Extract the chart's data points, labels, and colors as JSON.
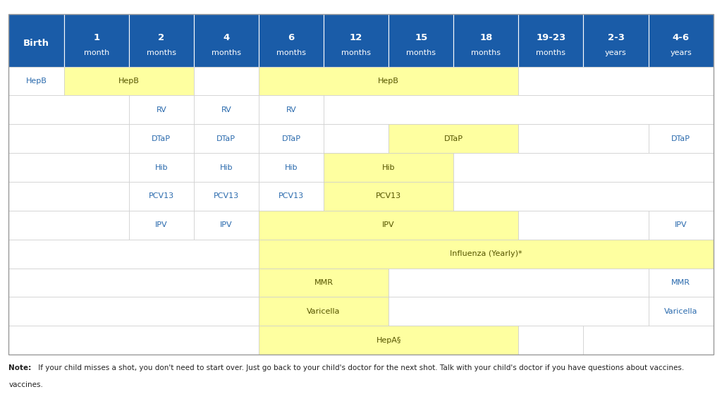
{
  "header_bg": "#1a5ca8",
  "header_text": "#ffffff",
  "yellow_bg": "#feffa0",
  "white_bg": "#ffffff",
  "border_color": "#cccccc",
  "text_color_blue": "#2a6aad",
  "text_color_dark": "#555500",
  "note_bold": "Note:",
  "note_rest": " If your child misses a shot, you don't need to start over. Just go back to your child's doctor for the next shot. Talk with your child's doctor if you have questions about vaccines.",
  "columns": [
    {
      "label": "Birth",
      "sub": ""
    },
    {
      "label": "1",
      "sub": "month"
    },
    {
      "label": "2",
      "sub": "months"
    },
    {
      "label": "4",
      "sub": "months"
    },
    {
      "label": "6",
      "sub": "months"
    },
    {
      "label": "12",
      "sub": "months"
    },
    {
      "label": "15",
      "sub": "months"
    },
    {
      "label": "18",
      "sub": "months"
    },
    {
      "label": "19-23",
      "sub": "months"
    },
    {
      "label": "2-3",
      "sub": "years"
    },
    {
      "label": "4-6",
      "sub": "years"
    }
  ],
  "col_widths_rel": [
    0.85,
    1.0,
    1.0,
    1.0,
    1.0,
    1.0,
    1.0,
    1.0,
    1.0,
    1.0,
    1.0
  ],
  "vaccines": [
    {
      "name": "HepB",
      "cells": [
        {
          "cols": [
            0
          ],
          "text": "HepB",
          "yellow": false
        },
        {
          "cols": [
            1,
            2
          ],
          "text": "HepB",
          "yellow": true
        },
        {
          "cols": [
            3
          ],
          "text": "",
          "yellow": false
        },
        {
          "cols": [
            4,
            5,
            6,
            7
          ],
          "text": "HepB",
          "yellow": true
        },
        {
          "cols": [
            8,
            9,
            10
          ],
          "text": "",
          "yellow": false
        }
      ]
    },
    {
      "name": "RV",
      "cells": [
        {
          "cols": [
            0,
            1
          ],
          "text": "",
          "yellow": false
        },
        {
          "cols": [
            2
          ],
          "text": "RV",
          "yellow": false
        },
        {
          "cols": [
            3
          ],
          "text": "RV",
          "yellow": false
        },
        {
          "cols": [
            4
          ],
          "text": "RV",
          "yellow": false
        },
        {
          "cols": [
            5,
            6,
            7,
            8,
            9,
            10
          ],
          "text": "",
          "yellow": false
        }
      ]
    },
    {
      "name": "DTaP",
      "cells": [
        {
          "cols": [
            0,
            1
          ],
          "text": "",
          "yellow": false
        },
        {
          "cols": [
            2
          ],
          "text": "DTaP",
          "yellow": false
        },
        {
          "cols": [
            3
          ],
          "text": "DTaP",
          "yellow": false
        },
        {
          "cols": [
            4
          ],
          "text": "DTaP",
          "yellow": false
        },
        {
          "cols": [
            5
          ],
          "text": "",
          "yellow": false
        },
        {
          "cols": [
            6,
            7
          ],
          "text": "DTaP",
          "yellow": true
        },
        {
          "cols": [
            8,
            9
          ],
          "text": "",
          "yellow": false
        },
        {
          "cols": [
            10
          ],
          "text": "DTaP",
          "yellow": false
        }
      ]
    },
    {
      "name": "Hib",
      "cells": [
        {
          "cols": [
            0,
            1
          ],
          "text": "",
          "yellow": false
        },
        {
          "cols": [
            2
          ],
          "text": "Hib",
          "yellow": false
        },
        {
          "cols": [
            3
          ],
          "text": "Hib",
          "yellow": false
        },
        {
          "cols": [
            4
          ],
          "text": "Hib",
          "yellow": false
        },
        {
          "cols": [
            5,
            6
          ],
          "text": "Hib",
          "yellow": true
        },
        {
          "cols": [
            7,
            8,
            9,
            10
          ],
          "text": "",
          "yellow": false
        }
      ]
    },
    {
      "name": "PCV13",
      "cells": [
        {
          "cols": [
            0,
            1
          ],
          "text": "",
          "yellow": false
        },
        {
          "cols": [
            2
          ],
          "text": "PCV13",
          "yellow": false
        },
        {
          "cols": [
            3
          ],
          "text": "PCV13",
          "yellow": false
        },
        {
          "cols": [
            4
          ],
          "text": "PCV13",
          "yellow": false
        },
        {
          "cols": [
            5,
            6
          ],
          "text": "PCV13",
          "yellow": true
        },
        {
          "cols": [
            7,
            8,
            9,
            10
          ],
          "text": "",
          "yellow": false
        }
      ]
    },
    {
      "name": "IPV",
      "cells": [
        {
          "cols": [
            0,
            1
          ],
          "text": "",
          "yellow": false
        },
        {
          "cols": [
            2
          ],
          "text": "IPV",
          "yellow": false
        },
        {
          "cols": [
            3
          ],
          "text": "IPV",
          "yellow": false
        },
        {
          "cols": [
            4,
            5,
            6,
            7
          ],
          "text": "IPV",
          "yellow": true
        },
        {
          "cols": [
            8,
            9
          ],
          "text": "",
          "yellow": false
        },
        {
          "cols": [
            10
          ],
          "text": "IPV",
          "yellow": false
        }
      ]
    },
    {
      "name": "Influenza",
      "cells": [
        {
          "cols": [
            0,
            1,
            2,
            3
          ],
          "text": "",
          "yellow": false
        },
        {
          "cols": [
            4,
            5,
            6,
            7,
            8,
            9,
            10
          ],
          "text": "Influenza (Yearly)*",
          "yellow": true
        }
      ]
    },
    {
      "name": "MMR",
      "cells": [
        {
          "cols": [
            0,
            1,
            2,
            3
          ],
          "text": "",
          "yellow": false
        },
        {
          "cols": [
            4,
            5
          ],
          "text": "MMR",
          "yellow": true
        },
        {
          "cols": [
            6,
            7,
            8,
            9
          ],
          "text": "",
          "yellow": false
        },
        {
          "cols": [
            10
          ],
          "text": "MMR",
          "yellow": false
        }
      ]
    },
    {
      "name": "Varicella",
      "cells": [
        {
          "cols": [
            0,
            1,
            2,
            3
          ],
          "text": "",
          "yellow": false
        },
        {
          "cols": [
            4,
            5
          ],
          "text": "Varicella",
          "yellow": true
        },
        {
          "cols": [
            6,
            7,
            8,
            9
          ],
          "text": "",
          "yellow": false
        },
        {
          "cols": [
            10
          ],
          "text": "Varicella",
          "yellow": false
        }
      ]
    },
    {
      "name": "HepA",
      "cells": [
        {
          "cols": [
            0,
            1,
            2,
            3
          ],
          "text": "",
          "yellow": false
        },
        {
          "cols": [
            4,
            5,
            6,
            7
          ],
          "text": "HepA§",
          "yellow": true
        },
        {
          "cols": [
            8
          ],
          "text": "",
          "yellow": false
        },
        {
          "cols": [
            9,
            10
          ],
          "text": "",
          "yellow": false
        }
      ]
    }
  ]
}
